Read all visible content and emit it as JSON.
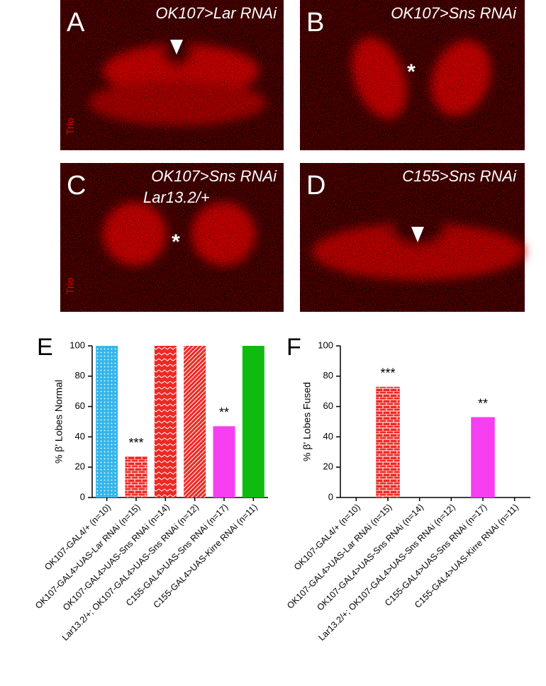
{
  "panels": [
    {
      "label": "A",
      "title": "OK107>Lar RNAi",
      "stain": "Trio"
    },
    {
      "label": "B",
      "title": "OK107>Sns RNAi",
      "marker": "*"
    },
    {
      "label": "C",
      "title": "OK107>Sns RNAi",
      "subtitle": "Lar13.2/+",
      "stain": "Trio",
      "marker": "*"
    },
    {
      "label": "D",
      "title": "C155>Sns RNAi"
    }
  ],
  "chart_data": [
    {
      "type": "bar",
      "panel": "E",
      "y_label": "% β' Lobes Normal",
      "categories": [
        "OK107-GAL4/+ (n=10)",
        "OK107-GAL4>UAS-Lar RNAi (n=15)",
        "OK107-GAL4>UAS-Sns RNAi (n=14)",
        "Lar13.2/+; OK107-GAL4>UAS-Sns RNAi (n=12)",
        "C155-GAL4>UAS-Sns RNAi (n=17)",
        "C155-GAL4>UAS-Kirre RNAi (n=11)"
      ],
      "values": [
        100,
        27,
        100,
        100,
        47,
        100
      ],
      "colors": [
        "#35b6ea",
        "#ec2a24",
        "#ec2a24",
        "#ec2a24",
        "#f53ff0",
        "#10bb10"
      ],
      "hatches": [
        "dots",
        "bricks",
        "chevrons",
        "stripes",
        "none",
        "none"
      ],
      "significance": [
        null,
        "***",
        null,
        null,
        "**",
        null
      ],
      "ylim": [
        0,
        100
      ],
      "yticks": [
        0,
        20,
        40,
        60,
        80,
        100
      ]
    },
    {
      "type": "bar",
      "panel": "F",
      "y_label": "% β' Lobes Fused",
      "categories": [
        "OK107-GAL4/+ (n=10)",
        "OK107-GAL4>UAS-Lar RNAi (n=15)",
        "OK107-GAL4>UAS-Sns RNAi (n=14)",
        "Lar13.2/+; OK107-GAL4>UAS-Sns RNAi (n=12)",
        "C155-GAL4>UAS-Sns RNAi (n=17)",
        "C155-GAL4>UAS-Kirre RNAi (n=11)"
      ],
      "values": [
        0,
        73,
        0,
        0,
        53,
        0
      ],
      "colors": [
        "#35b6ea",
        "#ec2a24",
        "#ec2a24",
        "#ec2a24",
        "#f53ff0",
        "#10bb10"
      ],
      "hatches": [
        "dots",
        "bricks",
        "chevrons",
        "stripes",
        "none",
        "none"
      ],
      "significance": [
        null,
        "***",
        null,
        null,
        "**",
        null
      ],
      "ylim": [
        0,
        100
      ],
      "yticks": [
        0,
        20,
        40,
        60,
        80,
        100
      ]
    }
  ]
}
